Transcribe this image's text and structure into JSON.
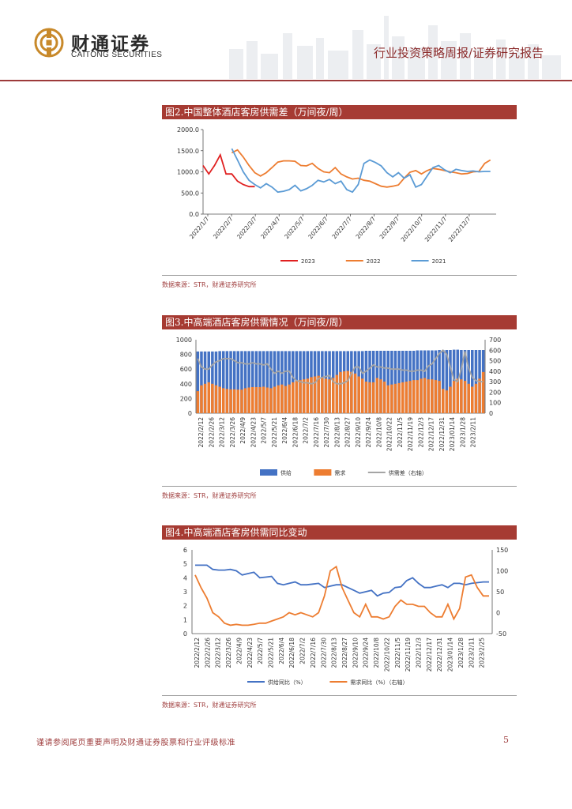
{
  "header": {
    "brand_cn": "财通证券",
    "brand_en": "CAITONG SECURITIES",
    "report_type": "行业投资策略周报/证券研究报告",
    "colors": {
      "accent": "#a63b33",
      "logo": "#c8892a"
    }
  },
  "figures": [
    {
      "title": "图2.中国整体酒店客房供需差（万间夜/周）",
      "source": "数据来源：STR，财通证券研究所"
    },
    {
      "title": "图3.中高端酒店客房供需情况（万间夜/周）",
      "source": "数据来源：STR，财通证券研究所"
    },
    {
      "title": "图4.中高端酒店客房供需同比变动",
      "source": "数据来源：STR，财通证券研究所"
    }
  ],
  "footer": {
    "disclaimer": "谨请参阅尾页重要声明及财通证券股票和行业评级标准",
    "page": "5"
  },
  "chart_data": [
    {
      "type": "line",
      "ylim": [
        0,
        2000
      ],
      "yticks": [
        "0.0",
        "500.0",
        "1000.0",
        "1500.0",
        "2000.0"
      ],
      "x_tick_labels": [
        "2022/1/7",
        "2022/2/7",
        "2022/3/7",
        "2022/4/7",
        "2022/5/7",
        "2022/6/7",
        "2022/7/7",
        "2022/8/7",
        "2022/9/7",
        "2022/10/7",
        "2022/11/7",
        "2022/12/7"
      ],
      "x_weeks": 52,
      "series": [
        {
          "name": "2023",
          "color": "#e02020",
          "values": [
            1150,
            950,
            1150,
            1400,
            950,
            950,
            780,
            700,
            650,
            650
          ]
        },
        {
          "name": "2022",
          "color": "#ed7d31",
          "values": [
            null,
            null,
            null,
            null,
            null,
            1450,
            1520,
            1350,
            1150,
            980,
            900,
            980,
            1100,
            1230,
            1260,
            1260,
            1250,
            1150,
            1140,
            1200,
            1080,
            1000,
            980,
            1100,
            950,
            880,
            830,
            850,
            800,
            780,
            720,
            660,
            640,
            660,
            690,
            850,
            990,
            1030,
            950,
            1030,
            1080,
            1060,
            1030,
            1000,
            980,
            950,
            960,
            1000,
            1010,
            1200,
            1280
          ]
        },
        {
          "name": "2021",
          "color": "#5b9bd5",
          "values": [
            null,
            null,
            null,
            null,
            null,
            1550,
            1280,
            1000,
            800,
            700,
            620,
            720,
            640,
            520,
            540,
            580,
            680,
            550,
            600,
            680,
            800,
            760,
            820,
            720,
            780,
            580,
            520,
            700,
            1200,
            1280,
            1220,
            1140,
            980,
            880,
            980,
            850,
            930,
            640,
            700,
            900,
            1100,
            1150,
            1050,
            980,
            1060,
            1030,
            1010,
            1020,
            1000,
            1010,
            1010
          ]
        }
      ]
    },
    {
      "type": "bar",
      "ylim_left": [
        0,
        1000
      ],
      "yticks_left": [
        "0",
        "200",
        "400",
        "600",
        "800",
        "1000"
      ],
      "ylim_right": [
        0,
        700
      ],
      "yticks_right": [
        "0",
        "100",
        "200",
        "300",
        "400",
        "500",
        "600",
        "700"
      ],
      "x_tick_labels": [
        "2022/2/12",
        "2022/2/26",
        "2022/3/12",
        "2022/3/26",
        "2022/4/9",
        "2022/4/23",
        "2022/5/7",
        "2022/5/21",
        "2022/6/4",
        "2022/6/18",
        "2022/7/2",
        "2022/7/16",
        "2022/7/30",
        "2022/8/13",
        "2022/8/27",
        "2022/9/10",
        "2022/9/24",
        "2022/10/8",
        "2022/10/22",
        "2022/11/5",
        "2022/11/19",
        "2022/12/3",
        "2022/12/17",
        "2022/12/31",
        "2023/01/14",
        "2023/1/28",
        "2023/2/11"
      ],
      "series": [
        {
          "name": "供给",
          "color": "#4472c4",
          "axis": "left",
          "values": [
            840,
            840,
            840,
            840,
            840,
            840,
            845,
            845,
            845,
            845,
            845,
            845,
            845,
            845,
            845,
            845,
            845,
            845,
            845,
            845,
            845,
            845,
            845,
            845,
            845,
            845,
            845,
            845,
            845,
            845,
            845,
            845,
            845,
            845,
            845,
            845,
            845,
            845,
            845,
            845,
            845,
            845,
            845,
            845,
            845,
            845,
            850,
            850,
            850,
            850,
            850,
            850,
            850,
            850,
            850,
            850,
            850,
            850,
            850,
            850,
            855,
            855,
            855,
            855,
            855,
            855,
            860,
            860,
            860,
            860,
            865,
            865,
            860,
            860,
            860,
            860,
            860,
            860,
            860
          ]
        },
        {
          "name": "需求",
          "color": "#ed7d31",
          "axis": "left",
          "values": [
            300,
            380,
            400,
            420,
            400,
            380,
            360,
            340,
            330,
            325,
            325,
            320,
            320,
            340,
            350,
            355,
            355,
            355,
            360,
            350,
            340,
            360,
            380,
            390,
            370,
            390,
            420,
            440,
            450,
            460,
            470,
            490,
            500,
            510,
            480,
            470,
            460,
            480,
            520,
            560,
            570,
            575,
            560,
            540,
            500,
            470,
            430,
            420,
            420,
            480,
            460,
            430,
            380,
            390,
            400,
            410,
            420,
            430,
            440,
            450,
            450,
            470,
            480,
            460,
            460,
            450,
            440,
            330,
            310,
            360,
            440,
            470,
            460,
            440,
            400,
            360,
            400,
            470,
            560
          ]
        },
        {
          "name": "供需差（右轴）",
          "color": "#a5a5a5",
          "axis": "right",
          "values": [
            520,
            440,
            420,
            420,
            460,
            490,
            500,
            520,
            520,
            520,
            500,
            480,
            480,
            470,
            470,
            480,
            470,
            470,
            460,
            470,
            420,
            380,
            400,
            380,
            400,
            400,
            340,
            310,
            300,
            290,
            290,
            280,
            290,
            330,
            340,
            350,
            360,
            300,
            280,
            280,
            290,
            310,
            380,
            440,
            440,
            380,
            400,
            430,
            460,
            440,
            440,
            430,
            430,
            420,
            420,
            420,
            410,
            410,
            400,
            400,
            410,
            410,
            400,
            450,
            470,
            520,
            570,
            600,
            560,
            440,
            320,
            300,
            420,
            590,
            430,
            340,
            310,
            300,
            300
          ]
        }
      ]
    },
    {
      "type": "line",
      "ylim_left": [
        0,
        6
      ],
      "yticks_left": [
        "0",
        "1",
        "2",
        "3",
        "4",
        "5",
        "6"
      ],
      "ylim_right": [
        -50,
        150
      ],
      "yticks_right": [
        "-50",
        "0",
        "50",
        "100",
        "150"
      ],
      "x_tick_labels": [
        "2022/2/12",
        "2022/2/26",
        "2022/3/12",
        "2022/3/26",
        "2022/4/9",
        "2022/4/23",
        "2022/5/7",
        "2022/5/21",
        "2022/6/4",
        "2022/6/18",
        "2022/7/2",
        "2022/7/16",
        "2022/7/30",
        "2022/8/13",
        "2022/8/27",
        "2022/9/10",
        "2022/9/24",
        "2022/10/8",
        "2022/10/22",
        "2022/11/5",
        "2022/11/19",
        "2022/12/3",
        "2022/12/17",
        "2022/12/31",
        "2023/01/14",
        "2023/1/28",
        "2023/2/11",
        "2023/2/25"
      ],
      "series": [
        {
          "name": "供给同比（%）",
          "color": "#4472c4",
          "axis": "left",
          "values": [
            4.9,
            4.9,
            4.9,
            4.6,
            4.55,
            4.55,
            4.6,
            4.5,
            4.2,
            4.3,
            4.4,
            4.0,
            4.05,
            4.1,
            3.6,
            3.5,
            3.6,
            3.7,
            3.5,
            3.5,
            3.55,
            3.6,
            3.3,
            3.4,
            3.5,
            3.5,
            3.3,
            3.1,
            2.9,
            3.0,
            3.1,
            2.7,
            2.9,
            2.95,
            3.3,
            3.35,
            3.8,
            4.0,
            3.6,
            3.3,
            3.3,
            3.4,
            3.5,
            3.3,
            3.6,
            3.6,
            3.5,
            3.6,
            3.65,
            3.7,
            3.7
          ]
        },
        {
          "name": "需求同比（%）（右轴）",
          "color": "#ed7d31",
          "axis": "right",
          "values": [
            90,
            60,
            35,
            0,
            -10,
            -25,
            -30,
            -28,
            -30,
            -30,
            -28,
            -25,
            -25,
            -20,
            -15,
            -10,
            0,
            -5,
            0,
            -5,
            -10,
            0,
            40,
            100,
            110,
            60,
            30,
            0,
            -10,
            20,
            -10,
            -10,
            -15,
            -10,
            15,
            30,
            20,
            20,
            15,
            15,
            0,
            -10,
            -10,
            20,
            -15,
            10,
            85,
            90,
            60,
            40,
            40
          ]
        }
      ]
    }
  ]
}
